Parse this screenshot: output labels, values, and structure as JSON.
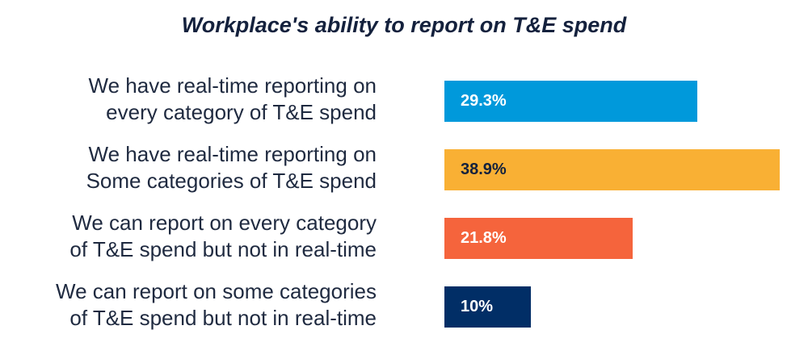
{
  "chart_data": {
    "type": "bar",
    "orientation": "horizontal",
    "title": "Workplace's ability to report on T&E spend",
    "categories": [
      [
        "We have real-time reporting on",
        "every category of T&E spend"
      ],
      [
        "We have real-time reporting on",
        "Some categories of T&E spend"
      ],
      [
        "We can report on every category",
        "of T&E spend but not in real-time"
      ],
      [
        "We can report on some categories",
        "of T&E spend but not in real-time"
      ]
    ],
    "values": [
      29.3,
      38.9,
      21.8,
      10
    ],
    "labels": [
      "29.3%",
      "38.9%",
      "21.8%",
      "10%"
    ],
    "colors": [
      "#0099db",
      "#f9b034",
      "#f5643c",
      "#012e66"
    ],
    "label_colors": [
      "#ffffff",
      "#14213d",
      "#ffffff",
      "#ffffff"
    ],
    "xlim": [
      0,
      39
    ],
    "xlabel": "",
    "ylabel": "",
    "grid": false
  }
}
